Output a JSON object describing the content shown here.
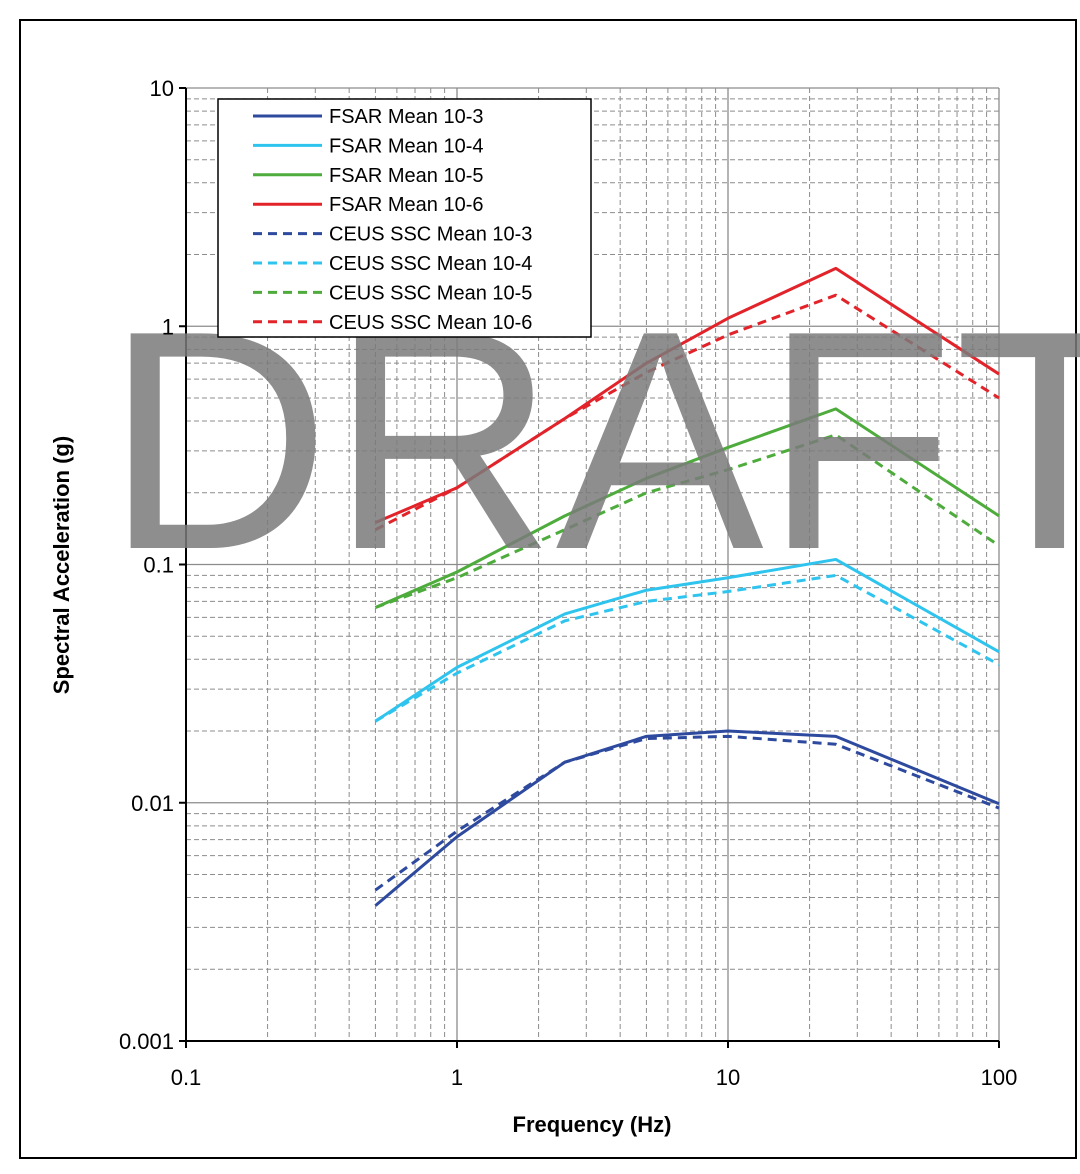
{
  "chart_data": {
    "type": "line",
    "x_scale": "log",
    "y_scale": "log",
    "xlim": [
      0.1,
      100
    ],
    "ylim": [
      0.001,
      10
    ],
    "xlabel": "Frequency (Hz)",
    "ylabel": "Spectral Acceleration (g)",
    "x_ticks": [
      "0.1",
      "1",
      "10",
      "100"
    ],
    "y_ticks": [
      "0.001",
      "0.01",
      "0.1",
      "1",
      "10"
    ],
    "grid": "major and minor (dashed)",
    "legend_position": "top-left",
    "watermark": "DRAFT",
    "x": [
      0.5,
      1,
      2.5,
      5,
      10,
      25,
      100
    ],
    "series": [
      {
        "name": "FSAR Mean 10-3",
        "color": "#2e4a9e",
        "style": "solid",
        "values": [
          0.0037,
          0.0072,
          0.0148,
          0.019,
          0.02,
          0.019,
          0.0099
        ]
      },
      {
        "name": "FSAR Mean 10-4",
        "color": "#2ec4ee",
        "style": "solid",
        "values": [
          0.022,
          0.037,
          0.062,
          0.078,
          0.088,
          0.105,
          0.043
        ]
      },
      {
        "name": "FSAR Mean 10-5",
        "color": "#4eac3c",
        "style": "solid",
        "values": [
          0.066,
          0.093,
          0.16,
          0.23,
          0.31,
          0.45,
          0.16
        ]
      },
      {
        "name": "FSAR Mean 10-6",
        "color": "#e2232a",
        "style": "solid",
        "values": [
          0.15,
          0.21,
          0.41,
          0.7,
          1.08,
          1.75,
          0.63
        ]
      },
      {
        "name": "CEUS SSC Mean 10-3",
        "color": "#2e4a9e",
        "style": "dashed",
        "values": [
          0.0043,
          0.0076,
          0.0148,
          0.0186,
          0.019,
          0.0176,
          0.0095
        ]
      },
      {
        "name": "CEUS SSC Mean 10-4",
        "color": "#2ec4ee",
        "style": "dashed",
        "values": [
          0.022,
          0.035,
          0.058,
          0.07,
          0.077,
          0.09,
          0.038
        ]
      },
      {
        "name": "CEUS SSC Mean 10-5",
        "color": "#4eac3c",
        "style": "dashed",
        "values": [
          0.066,
          0.088,
          0.14,
          0.2,
          0.25,
          0.35,
          0.12
        ]
      },
      {
        "name": "CEUS SSC Mean 10-6",
        "color": "#e2232a",
        "style": "dashed",
        "values": [
          0.14,
          0.21,
          0.41,
          0.64,
          0.92,
          1.35,
          0.5
        ]
      }
    ]
  }
}
